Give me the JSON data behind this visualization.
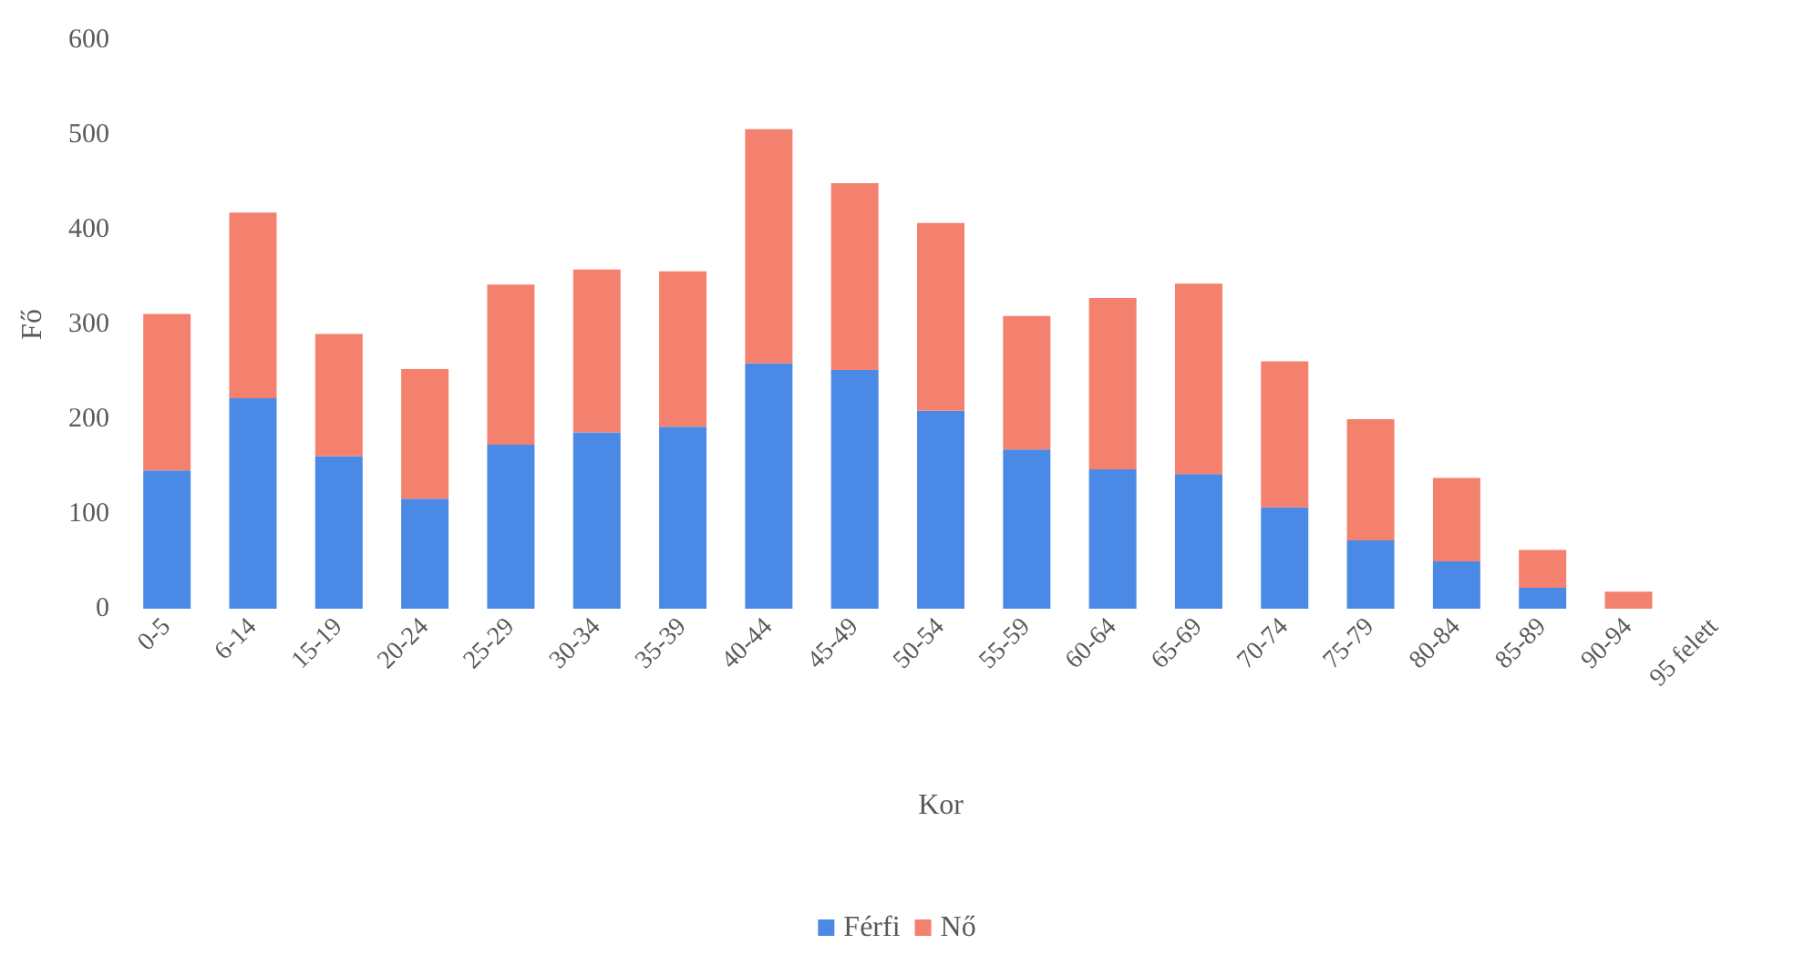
{
  "chart_data": {
    "type": "bar",
    "stacked": true,
    "xlabel": "Kor",
    "ylabel": "Fő",
    "categories": [
      "0-5",
      "6-14",
      "15-19",
      "20-24",
      "25-29",
      "30-34",
      "35-39",
      "40-44",
      "45-49",
      "50-54",
      "55-59",
      "60-64",
      "65-69",
      "70-74",
      "75-79",
      "80-84",
      "85-89",
      "90-94",
      "95 felett"
    ],
    "series": [
      {
        "name": "Férfi",
        "color": "#4a8ae6",
        "values": [
          146,
          222,
          161,
          116,
          173,
          186,
          192,
          259,
          252,
          209,
          168,
          147,
          142,
          107,
          72,
          50,
          22,
          0,
          0
        ]
      },
      {
        "name": "Nő",
        "color": "#f4806e",
        "values": [
          165,
          196,
          129,
          137,
          169,
          172,
          164,
          247,
          197,
          198,
          141,
          181,
          201,
          154,
          128,
          88,
          40,
          18,
          0
        ]
      }
    ],
    "ylim": [
      0,
      600
    ],
    "yticks": [
      0,
      100,
      200,
      300,
      400,
      500,
      600
    ],
    "grid": false,
    "legend": "bottom"
  }
}
